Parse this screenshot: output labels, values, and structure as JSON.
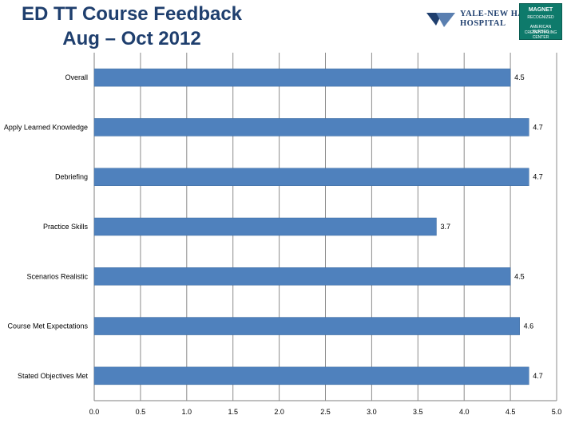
{
  "header": {
    "title_line1": "ED TT Course Feedback",
    "title_line2": "Aug – Oct 2012"
  },
  "logo": {
    "hospital_line1": "YALE-NEW HAVEN",
    "hospital_line2": "HOSPITAL",
    "badge_line1": "MAGNET",
    "badge_line2": "RECOGNIZED",
    "badge_line3": "AMERICAN NURSES",
    "badge_line4": "CREDENTIALING CENTER"
  },
  "colors": {
    "bar": "#4f81bd",
    "bar_edge": "#3c6a9f",
    "grid": "#8c8c8c",
    "title": "#1f3f6e"
  },
  "chart_data": {
    "type": "bar",
    "orientation": "horizontal",
    "categories": [
      "Overall",
      "Apply Learned Knowledge",
      "Debriefing",
      "Practice Skills",
      "Scenarios Realistic",
      "Course Met Expectations",
      "Stated Objectives Met"
    ],
    "values": [
      4.5,
      4.7,
      4.7,
      3.7,
      4.5,
      4.6,
      4.7
    ],
    "xlim": [
      0,
      5
    ],
    "xticks": [
      "0.0",
      "0.5",
      "1.0",
      "1.5",
      "2.0",
      "2.5",
      "3.0",
      "3.5",
      "4.0",
      "4.5",
      "5.0"
    ],
    "grid": true,
    "legend": "none"
  }
}
